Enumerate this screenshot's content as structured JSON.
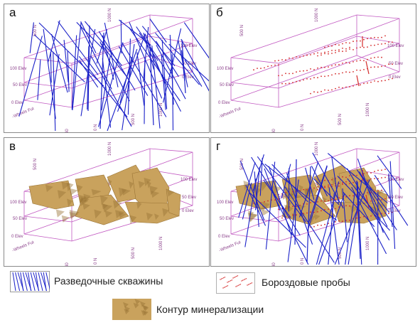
{
  "panels": [
    {
      "id": "a",
      "label": "а"
    },
    {
      "id": "b",
      "label": "б"
    },
    {
      "id": "v",
      "label": "в"
    },
    {
      "id": "g",
      "label": "г"
    }
  ],
  "axis_labels": {
    "elev_100": "100 Elev",
    "elev_50": "50 Elev",
    "elev_0": "0 Elev",
    "north_0": "0 N",
    "north_500": "500 N",
    "north_1000": "1000 N",
    "ewidth": "40",
    "far_corner": "-Wheels Fut"
  },
  "legend": {
    "drillholes": "Разведочные скважины",
    "trench_samples": "Бороздовые пробы",
    "mineralization": "Контур минерализации"
  },
  "colors": {
    "box": "#c25ac2",
    "drill": "#1a20c8",
    "trench": "#d42a2a",
    "ore": "#c9a25d",
    "ore_dark": "#9a7436"
  }
}
